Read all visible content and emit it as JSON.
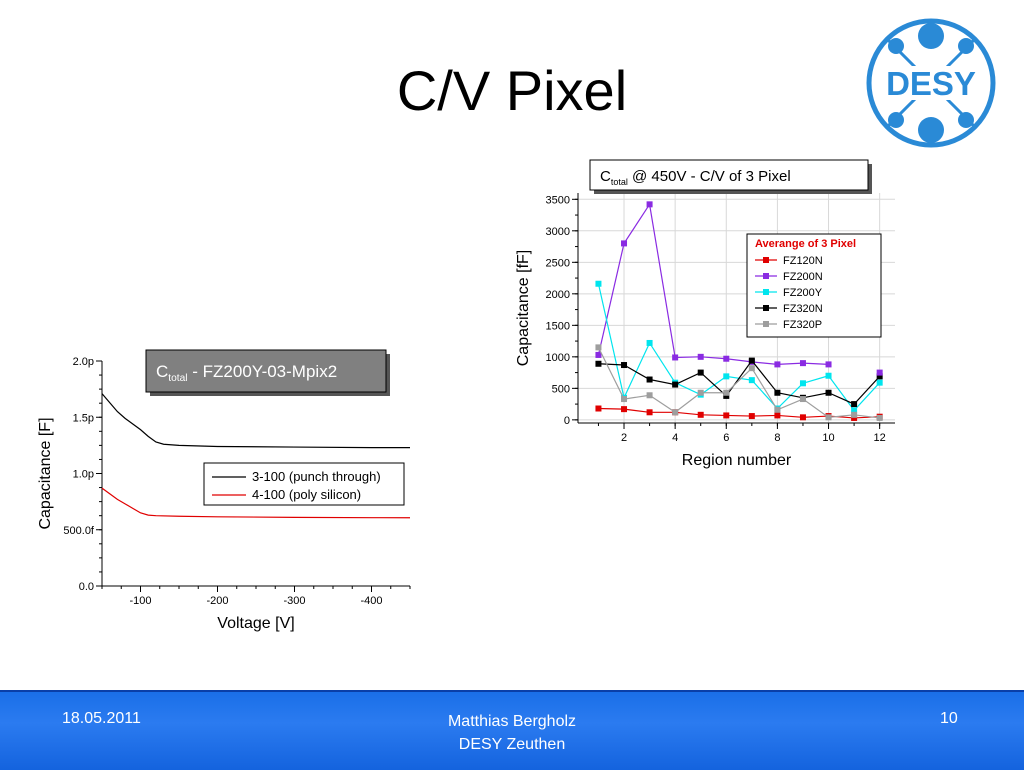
{
  "slide": {
    "title": "C/V Pixel"
  },
  "logo": {
    "text": "DESY"
  },
  "footer": {
    "date": "18.05.2011",
    "author": "Matthias Bergholz",
    "institute": "DESY Zeuthen",
    "page": "10"
  },
  "chart_data": [
    {
      "type": "line",
      "title": {
        "main": "C",
        "sub": "total",
        "rest": " - FZ200Y-03-Mpix2"
      },
      "xlabel": "Voltage [V]",
      "ylabel": "Capacitance [F]",
      "xlim": [
        -50,
        -450
      ],
      "ylim": [
        0,
        2e-12
      ],
      "xticks": [
        {
          "v": -100,
          "label": "-100"
        },
        {
          "v": -200,
          "label": "-200"
        },
        {
          "v": -300,
          "label": "-300"
        },
        {
          "v": -400,
          "label": "-400"
        }
      ],
      "yticks": [
        {
          "v": 0,
          "label": "0.0"
        },
        {
          "v": 5e-13,
          "label": "500.0f"
        },
        {
          "v": 1e-12,
          "label": "1.0p"
        },
        {
          "v": 1.5e-12,
          "label": "1.5p"
        },
        {
          "v": 2e-12,
          "label": "2.0p"
        }
      ],
      "grid": false,
      "legend_position": "center-right",
      "series": [
        {
          "name": "3-100 (punch through)",
          "color": "#000000",
          "x": [
            -50,
            -60,
            -70,
            -80,
            -90,
            -100,
            -110,
            -120,
            -130,
            -150,
            -200,
            -300,
            -400,
            -450
          ],
          "y": [
            1.71e-12,
            1.63e-12,
            1.55e-12,
            1.49e-12,
            1.44e-12,
            1.39e-12,
            1.33e-12,
            1.28e-12,
            1.26e-12,
            1.25e-12,
            1.24e-12,
            1.235e-12,
            1.23e-12,
            1.23e-12
          ]
        },
        {
          "name": "4-100 (poly silicon)",
          "color": "#e00000",
          "x": [
            -50,
            -60,
            -70,
            -80,
            -90,
            -100,
            -110,
            -120,
            -150,
            -200,
            -300,
            -400,
            -450
          ],
          "y": [
            8.7e-13,
            8.2e-13,
            7.7e-13,
            7.3e-13,
            6.9e-13,
            6.5e-13,
            6.3e-13,
            6.25e-13,
            6.2e-13,
            6.15e-13,
            6.1e-13,
            6.07e-13,
            6.07e-13
          ]
        }
      ]
    },
    {
      "type": "line",
      "title": {
        "main": "C",
        "sub": "total",
        "rest": " @ 450V - C/V of 3 Pixel"
      },
      "xlabel": "Region number",
      "ylabel": "Capacitance [fF]",
      "xlim": [
        0.2,
        12.6
      ],
      "ylim": [
        -50,
        3600
      ],
      "xticks": [
        {
          "v": 2,
          "label": "2"
        },
        {
          "v": 4,
          "label": "4"
        },
        {
          "v": 6,
          "label": "6"
        },
        {
          "v": 8,
          "label": "8"
        },
        {
          "v": 10,
          "label": "10"
        },
        {
          "v": 12,
          "label": "12"
        }
      ],
      "yticks": [
        {
          "v": 0,
          "label": "0"
        },
        {
          "v": 500,
          "label": "500"
        },
        {
          "v": 1000,
          "label": "1000"
        },
        {
          "v": 1500,
          "label": "1500"
        },
        {
          "v": 2000,
          "label": "2000"
        },
        {
          "v": 2500,
          "label": "2500"
        },
        {
          "v": 3000,
          "label": "3000"
        },
        {
          "v": 3500,
          "label": "3500"
        }
      ],
      "grid": true,
      "legend_title": "Averange of 3 Pixel",
      "legend_position": "top-right",
      "series": [
        {
          "name": "FZ120N",
          "color": "#e00000",
          "x": [
            1,
            2,
            3,
            4,
            5,
            6,
            7,
            8,
            9,
            10,
            11,
            12
          ],
          "y": [
            180,
            170,
            120,
            120,
            80,
            70,
            60,
            70,
            40,
            60,
            30,
            50
          ]
        },
        {
          "name": "FZ200N",
          "color": "#8a2be2",
          "x": [
            1,
            2,
            3,
            4,
            5,
            6,
            7,
            8,
            9,
            10
          ],
          "y": [
            1030,
            2800,
            3420,
            990,
            1000,
            970,
            920,
            880,
            900,
            880
          ]
        },
        {
          "name": "FZ200Y",
          "color": "#00e5ee",
          "x": [
            1,
            2,
            3,
            4,
            5,
            6,
            7,
            8,
            9,
            10,
            11,
            12
          ],
          "y": [
            2160,
            350,
            1220,
            590,
            400,
            690,
            630,
            180,
            580,
            700,
            150,
            590
          ]
        },
        {
          "name": "FZ320N",
          "color": "#000000",
          "x": [
            1,
            2,
            3,
            4,
            5,
            6,
            7,
            8,
            9,
            10,
            11,
            12
          ],
          "y": [
            890,
            870,
            640,
            560,
            750,
            380,
            940,
            430,
            350,
            430,
            250,
            690
          ]
        },
        {
          "name": "FZ320P",
          "color": "#9e9e9e",
          "x": [
            1,
            2,
            3,
            4,
            5,
            6,
            7,
            8,
            9,
            10,
            11,
            12
          ],
          "y": [
            1150,
            330,
            390,
            120,
            430,
            430,
            820,
            160,
            330,
            40,
            80,
            30
          ]
        }
      ],
      "extra_points": [
        {
          "series": "FZ200N",
          "x": 12,
          "y": 750,
          "color": "#8a2be2"
        }
      ]
    }
  ]
}
